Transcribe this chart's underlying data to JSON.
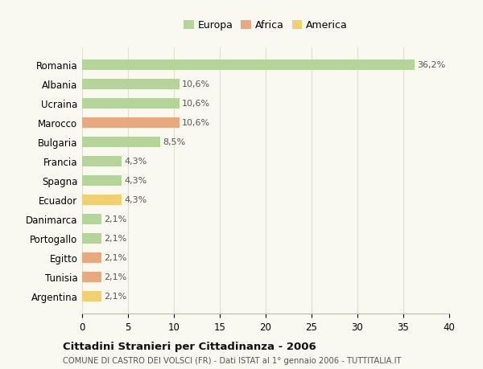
{
  "categories": [
    "Romania",
    "Albania",
    "Ucraina",
    "Marocco",
    "Bulgaria",
    "Francia",
    "Spagna",
    "Ecuador",
    "Danimarca",
    "Portogallo",
    "Egitto",
    "Tunisia",
    "Argentina"
  ],
  "values": [
    36.2,
    10.6,
    10.6,
    10.6,
    8.5,
    4.3,
    4.3,
    4.3,
    2.1,
    2.1,
    2.1,
    2.1,
    2.1
  ],
  "labels": [
    "36,2%",
    "10,6%",
    "10,6%",
    "10,6%",
    "8,5%",
    "4,3%",
    "4,3%",
    "4,3%",
    "2,1%",
    "2,1%",
    "2,1%",
    "2,1%",
    "2,1%"
  ],
  "continents": [
    "Europa",
    "Europa",
    "Europa",
    "Africa",
    "Europa",
    "Europa",
    "Europa",
    "America",
    "Europa",
    "Europa",
    "Africa",
    "Africa",
    "America"
  ],
  "colors": {
    "Europa": "#b5d49a",
    "Africa": "#e8a97e",
    "America": "#f0d070"
  },
  "xlim": [
    0,
    40
  ],
  "xticks": [
    0,
    5,
    10,
    15,
    20,
    25,
    30,
    35,
    40
  ],
  "title": "Cittadini Stranieri per Cittadinanza - 2006",
  "subtitle": "COMUNE DI CASTRO DEI VOLSCI (FR) - Dati ISTAT al 1° gennaio 2006 - TUTTITALIA.IT",
  "background_color": "#f9f9f2",
  "grid_color": "#e0e0d0",
  "bar_height": 0.55,
  "label_fontsize": 8,
  "ytick_fontsize": 8.5,
  "xtick_fontsize": 8.5
}
